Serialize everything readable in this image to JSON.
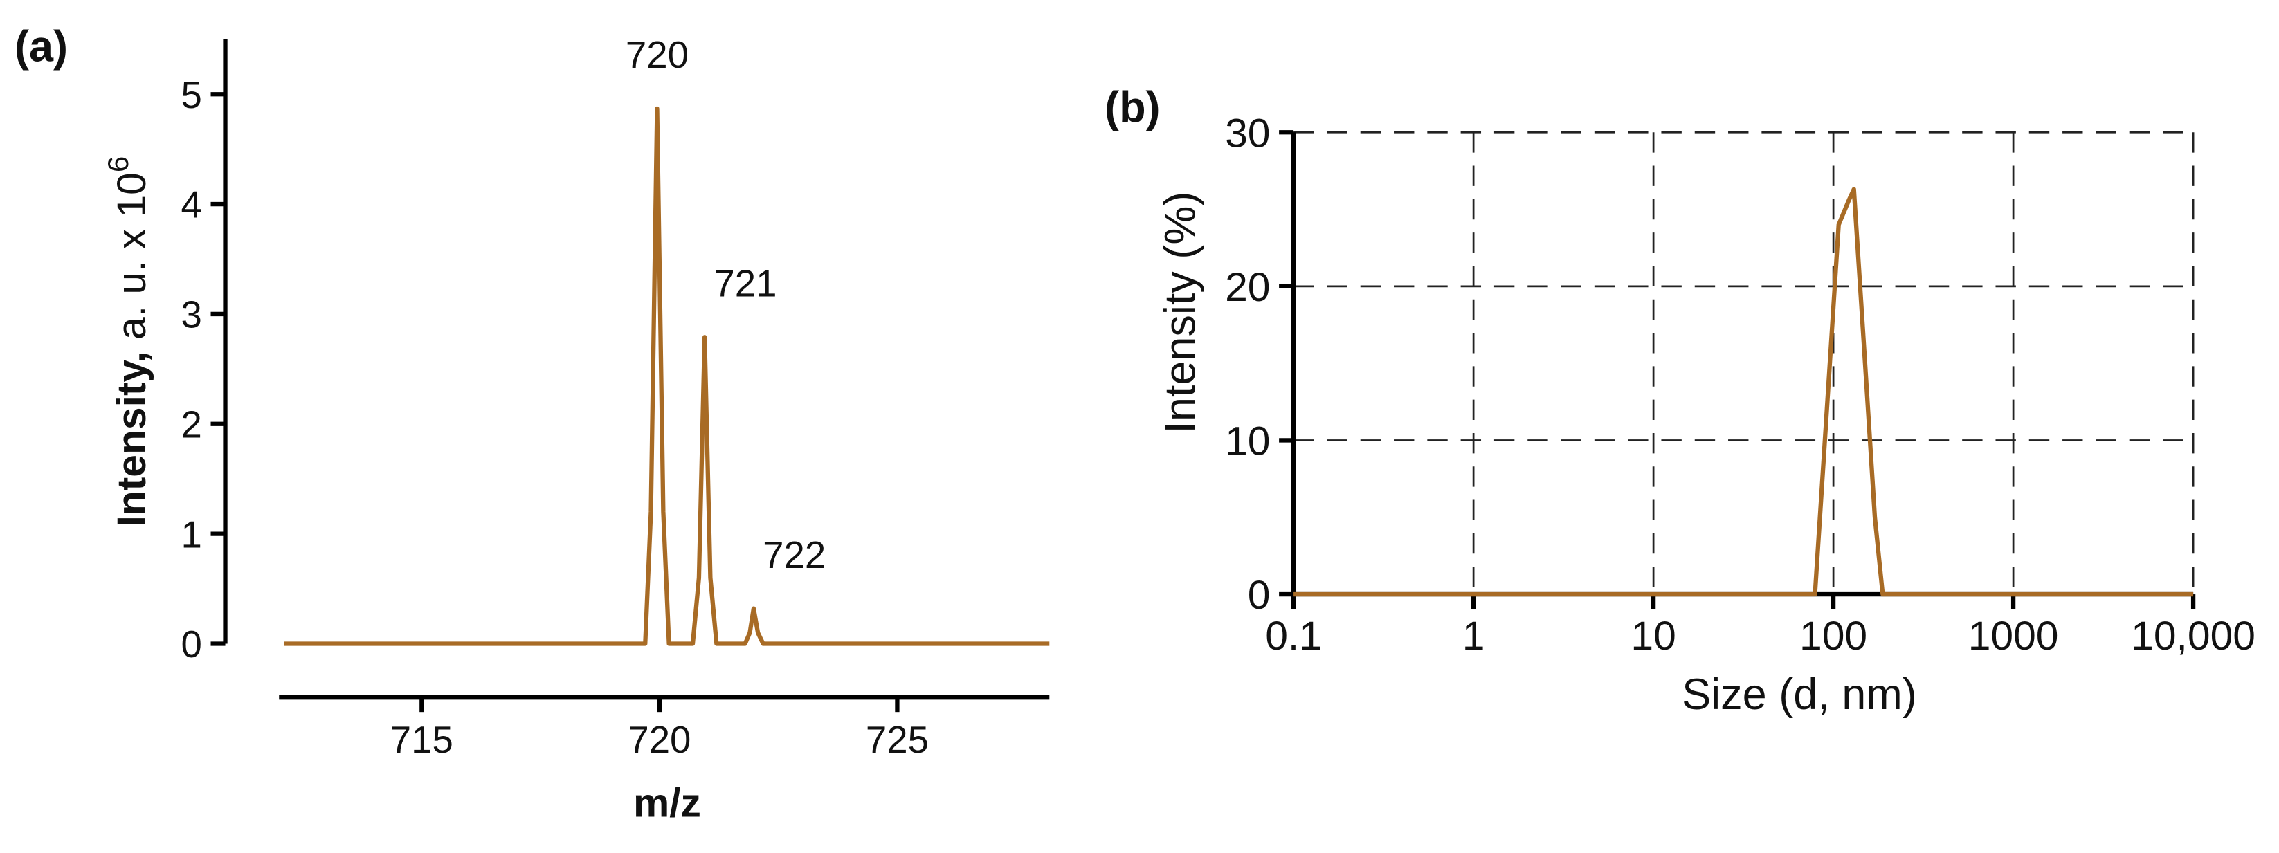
{
  "chart_data": [
    {
      "type": "line",
      "panel": "(a)",
      "xlabel": "m/z",
      "ylabel": "Intensity,",
      "ylabel_units": "a. u. x 10",
      "ylabel_exponent": "6",
      "color": "#a86b25",
      "x": [
        712.1,
        719.7,
        719.82,
        719.95,
        720.08,
        720.2,
        720.7,
        720.83,
        720.95,
        721.07,
        721.2,
        721.8,
        721.9,
        721.98,
        722.07,
        722.18,
        728.2
      ],
      "values": [
        0,
        0,
        1.2,
        4.87,
        1.2,
        0,
        0,
        0.6,
        2.79,
        0.6,
        0,
        0,
        0.1,
        0.32,
        0.1,
        0,
        0
      ],
      "peak_labels": [
        "720",
        "721",
        "722"
      ],
      "xlim": [
        712,
        728.2
      ],
      "xticks": [
        715,
        720,
        725
      ],
      "ylim": [
        0,
        5.5
      ],
      "yticks": [
        0,
        1,
        2,
        3,
        4,
        5
      ]
    },
    {
      "type": "line",
      "panel": "(b)",
      "xlabel": "Size (d, nm)",
      "ylabel": "Intensity (%)",
      "color": "#a86b25",
      "xscale": "log",
      "grid": true,
      "grid_style": "dashed",
      "x": [
        0.1,
        79,
        92,
        107,
        122,
        130,
        150,
        170,
        188,
        10000
      ],
      "values": [
        0,
        0,
        12,
        24,
        25.6,
        26.3,
        15,
        5,
        0,
        0
      ],
      "xlim": [
        0.1,
        10000
      ],
      "xticks": [
        0.1,
        1,
        10,
        100,
        1000,
        {
          "value": 10000,
          "label": "10,000"
        }
      ],
      "ylim": [
        0,
        30
      ],
      "yticks": [
        0,
        10,
        20,
        30
      ]
    }
  ]
}
